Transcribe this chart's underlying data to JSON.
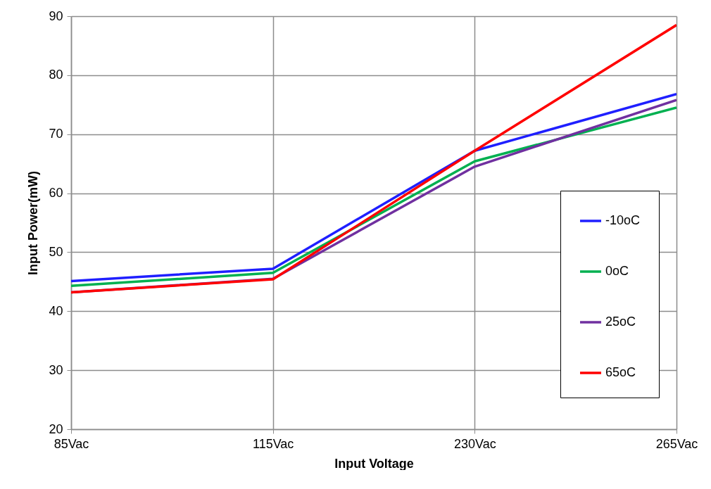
{
  "chart_data": {
    "type": "line",
    "xlabel": "Input Voltage",
    "ylabel": "Input Power(mW)",
    "categories": [
      "85Vac",
      "115Vac",
      "230Vac",
      "265Vac"
    ],
    "series": [
      {
        "name": "-10oC",
        "color": "#1f1fff",
        "values": [
          45.1,
          47.2,
          67.2,
          76.8
        ]
      },
      {
        "name": "0oC",
        "color": "#00b050",
        "values": [
          44.3,
          46.5,
          65.4,
          74.5
        ]
      },
      {
        "name": "25oC",
        "color": "#7030a0",
        "values": [
          43.2,
          45.5,
          64.5,
          75.8
        ]
      },
      {
        "name": "65oC",
        "color": "#ff0000",
        "values": [
          43.2,
          45.4,
          67.2,
          88.5
        ]
      }
    ],
    "ylim": [
      20,
      90
    ],
    "yticks": [
      20,
      30,
      40,
      50,
      60,
      70,
      80,
      90
    ],
    "grid": true,
    "legend": "right",
    "marker": "none",
    "line_style": "solid"
  }
}
